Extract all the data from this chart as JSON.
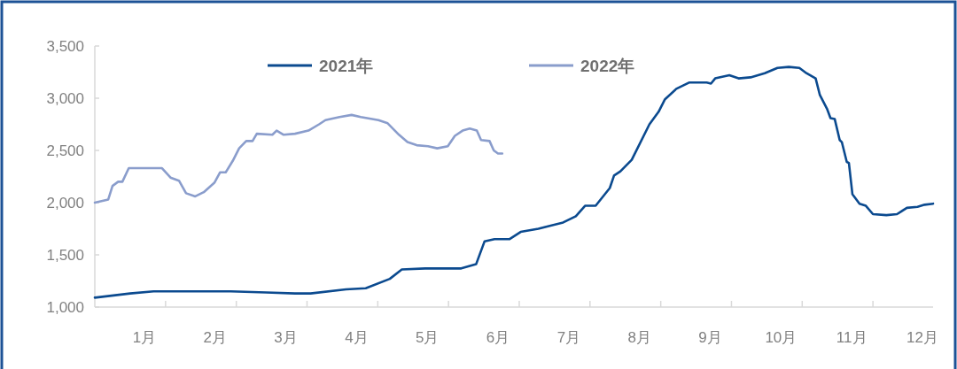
{
  "chart_data": {
    "type": "line",
    "xlim": [
      0.3,
      12.15
    ],
    "xticks": [
      {
        "value": 1.3,
        "label": null
      },
      {
        "value": 2.3,
        "label": null
      },
      {
        "value": 3.3,
        "label": null
      },
      {
        "value": 4.3,
        "label": null
      },
      {
        "value": 5.3,
        "label": null
      },
      {
        "value": 6.3,
        "label": null
      },
      {
        "value": 7.3,
        "label": null
      },
      {
        "value": 8.3,
        "label": null
      },
      {
        "value": 9.3,
        "label": null
      },
      {
        "value": 10.3,
        "label": null
      },
      {
        "value": 11.3,
        "label": null
      },
      {
        "value": 1,
        "label": "1月"
      },
      {
        "value": 2,
        "label": "2月"
      },
      {
        "value": 3,
        "label": "3月"
      },
      {
        "value": 4,
        "label": "4月"
      },
      {
        "value": 5,
        "label": "5月"
      },
      {
        "value": 6,
        "label": "6月"
      },
      {
        "value": 7,
        "label": "7月"
      },
      {
        "value": 8,
        "label": "8月"
      },
      {
        "value": 9,
        "label": "9月"
      },
      {
        "value": 10,
        "label": "10月"
      },
      {
        "value": 11,
        "label": "11月"
      },
      {
        "value": 12,
        "label": "12月"
      }
    ],
    "ylim": [
      1000,
      3500
    ],
    "yticks": [
      {
        "value": 1000,
        "label": "1,000"
      },
      {
        "value": 1500,
        "label": "1,500"
      },
      {
        "value": 2000,
        "label": "2,000"
      },
      {
        "value": 2500,
        "label": "2,500"
      },
      {
        "value": 3000,
        "label": "3,000"
      },
      {
        "value": 3500,
        "label": "3,500"
      }
    ],
    "grid": false,
    "legend": "top",
    "series": [
      {
        "name": "2021年",
        "color": "#0b4a8f",
        "x": [
          0.3,
          0.8,
          1.13,
          1.3,
          1.97,
          2.22,
          2.72,
          3.13,
          3.35,
          3.85,
          4.13,
          4.47,
          4.64,
          4.97,
          5.48,
          5.69,
          5.81,
          5.95,
          6.16,
          6.32,
          6.57,
          6.92,
          7.1,
          7.23,
          7.38,
          7.58,
          7.64,
          7.73,
          7.89,
          8.14,
          8.27,
          8.36,
          8.52,
          8.7,
          8.95,
          9.01,
          9.07,
          9.27,
          9.4,
          9.57,
          9.77,
          9.95,
          10.11,
          10.26,
          10.36,
          10.49,
          10.55,
          10.65,
          10.7,
          10.76,
          10.83,
          10.86,
          10.93,
          10.96,
          11.01,
          11.11,
          11.2,
          11.3,
          11.49,
          11.64,
          11.78,
          11.93,
          12.03,
          12.15
        ],
        "values": [
          1090,
          1130,
          1150,
          1150,
          1150,
          1150,
          1140,
          1130,
          1130,
          1170,
          1180,
          1270,
          1360,
          1370,
          1370,
          1410,
          1630,
          1650,
          1650,
          1720,
          1750,
          1810,
          1870,
          1970,
          1970,
          2140,
          2260,
          2300,
          2410,
          2750,
          2870,
          2990,
          3090,
          3150,
          3150,
          3140,
          3190,
          3220,
          3190,
          3200,
          3240,
          3290,
          3300,
          3290,
          3240,
          3190,
          3030,
          2900,
          2810,
          2800,
          2600,
          2580,
          2390,
          2380,
          2080,
          1990,
          1970,
          1890,
          1880,
          1890,
          1950,
          1960,
          1980,
          1990
        ]
      },
      {
        "name": "2022年",
        "color": "#8a9dcc",
        "x": [
          0.3,
          0.49,
          0.55,
          0.63,
          0.69,
          0.78,
          1.25,
          1.37,
          1.49,
          1.59,
          1.72,
          1.84,
          1.99,
          2.07,
          2.15,
          2.25,
          2.34,
          2.44,
          2.53,
          2.59,
          2.81,
          2.87,
          2.97,
          3.13,
          3.32,
          3.47,
          3.56,
          3.63,
          3.76,
          3.93,
          4.06,
          4.31,
          4.44,
          4.6,
          4.72,
          4.85,
          5.01,
          5.14,
          5.29,
          5.39,
          5.5,
          5.6,
          5.7,
          5.76,
          5.88,
          5.94,
          6.0,
          6.06
        ],
        "values": [
          2000,
          2030,
          2160,
          2200,
          2200,
          2330,
          2330,
          2240,
          2210,
          2090,
          2060,
          2100,
          2190,
          2290,
          2290,
          2400,
          2520,
          2590,
          2590,
          2660,
          2650,
          2690,
          2650,
          2660,
          2690,
          2750,
          2790,
          2800,
          2820,
          2840,
          2820,
          2790,
          2760,
          2650,
          2580,
          2550,
          2540,
          2520,
          2540,
          2640,
          2690,
          2710,
          2690,
          2600,
          2590,
          2500,
          2470,
          2470
        ]
      }
    ]
  }
}
